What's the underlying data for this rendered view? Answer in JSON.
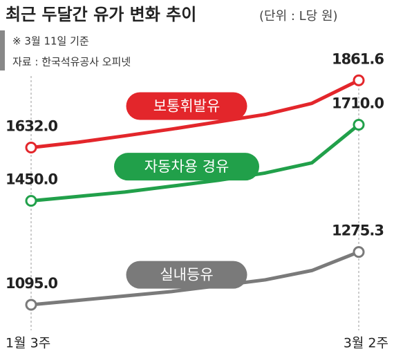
{
  "chart_data": {
    "type": "line",
    "title": "최근 두달간 유가 변화 추이",
    "unit": "(단위 : L당 원)",
    "notes": [
      "※ 3월 11일 기준",
      "자료 : 한국석유공사 오피넷"
    ],
    "categories": [
      "1월 3주",
      null,
      null,
      null,
      null,
      null,
      null,
      "3월 2주"
    ],
    "ylim": [
      1050,
      1900
    ],
    "series": [
      {
        "name": "보통휘발유",
        "color": "#e3262b",
        "values": [
          1632,
          1650,
          1672,
          1695,
          1720,
          1745,
          1783,
          1861.6
        ],
        "value_labels": [
          "1632.0",
          null,
          null,
          null,
          null,
          null,
          null,
          "1861.6"
        ]
      },
      {
        "name": "자동차용 경유",
        "color": "#21a04a",
        "values": [
          1450,
          1465,
          1480,
          1500,
          1520,
          1545,
          1580,
          1710
        ],
        "value_labels": [
          "1450.0",
          null,
          null,
          null,
          null,
          null,
          null,
          "1710.0"
        ]
      },
      {
        "name": "실내등유",
        "color": "#7a7a7a",
        "values": [
          1095,
          1110,
          1125,
          1140,
          1160,
          1180,
          1212,
          1275.3
        ],
        "value_labels": [
          "1095.0",
          null,
          null,
          null,
          null,
          null,
          null,
          "1275.3"
        ]
      }
    ]
  }
}
